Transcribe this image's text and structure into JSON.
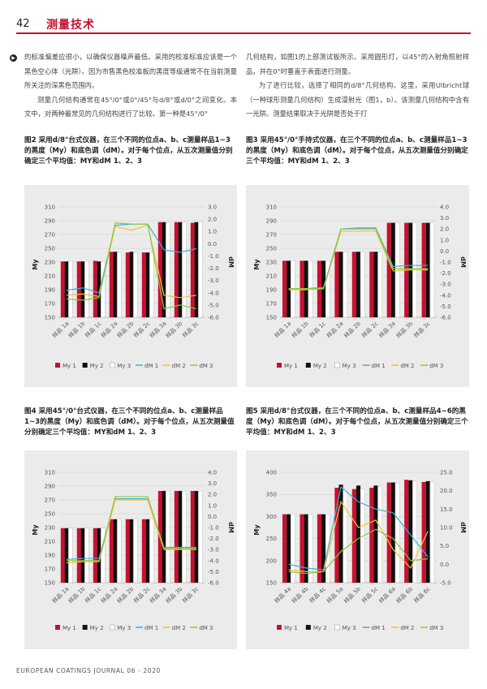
{
  "header": {
    "page_number": "42",
    "section": "测量技术"
  },
  "body_text": {
    "col1": [
      "的标准偏差应很小，以确保仪器噪声最低。采用的校准标准应该是一个黑色空心体（光阱）。因为市售黑色校准板的黑度等级通常不在当前测量所关注的深黑色范围内。",
      "测量几何结构通常在45°/0°或0°/45°与d/8°或d/0°之间变化。本文中，对两种最常见的几何结构进行了比较。第一种是45°/0°"
    ],
    "col2": [
      "几何结构，如图1的上部测试板所示。采用圆形灯，以45°的入射角照射样品，并在0°时垂直于表面进行测量。",
      "为了进行比较，选择了相同的d/8°几何结构。这里，采用Ulbricht球（一种球形测量几何结构）生成漫射光（图1，b）。该测量几何结构中含有一光阱。测量结果取决于光阱是否处于打"
    ]
  },
  "figures": [
    {
      "caption": "图2 采用d/8°台式仪器，在三个不同的位点a、b、c测量样品1~3的黑度（My）和底色调（dM）。对于每个位点，从五次测量值分别确定三个平均值：MY和dM 1、2、3",
      "chart_data": {
        "type": "bar",
        "title": "",
        "categories": [
          "样品 1a",
          "样品 1b",
          "样品 1c",
          "样品 2a",
          "样品 2b",
          "样品 2c",
          "样品 3a",
          "样品 3b",
          "样品 3c"
        ],
        "y_left": {
          "label": "My",
          "ylim": [
            150,
            310
          ],
          "ticks": [
            150,
            170,
            190,
            210,
            230,
            250,
            270,
            290,
            310
          ]
        },
        "y_right": {
          "label": "dM",
          "ylim": [
            -6,
            3
          ],
          "ticks": [
            "-6.0",
            "-5.0",
            "-4.0",
            "-3.0",
            "-2.0",
            "-1.0",
            "0.0",
            "1.0",
            "2.0",
            "3.0"
          ]
        },
        "grid": true,
        "legend_position": "bottom",
        "bar_series": [
          {
            "name": "My 1",
            "values": [
              231,
              231,
              232,
              245,
              244,
              244,
              288,
              288,
              287
            ]
          },
          {
            "name": "My 2",
            "values": [
              231,
              231,
              231,
              245,
              245,
              244,
              288,
              288,
              288
            ]
          },
          {
            "name": "My 3",
            "values": [
              231,
              231,
              231,
              244,
              244,
              244,
              287,
              288,
              288
            ]
          }
        ],
        "line_series": [
          {
            "name": "dM 1",
            "values": [
              -3.8,
              -3.6,
              -4.0,
              1.5,
              1.6,
              1.6,
              -0.5,
              -0.7,
              -0.4
            ]
          },
          {
            "name": "dM 2",
            "values": [
              -4.2,
              -4.1,
              -4.3,
              1.4,
              1.1,
              1.5,
              -4.2,
              -4.4,
              -4.2
            ]
          },
          {
            "name": "dM 3",
            "values": [
              -4.5,
              -4.6,
              -4.4,
              1.7,
              1.6,
              1.6,
              -5.3,
              -5.0,
              -5.3
            ]
          }
        ]
      }
    },
    {
      "caption": "图3 采用45°/0°手持式仪器，在三个不同的位点a、b、c测量样品1~3的黑度（My）和底色调（dM）。对于每个位点，从五次测量值分别确定三个平均值：MY和dM 1、2、3",
      "chart_data": {
        "type": "bar",
        "title": "",
        "categories": [
          "样品 1a",
          "样品 1b",
          "样品 1c",
          "样品 2a",
          "样品 2b",
          "样品 2c",
          "样品 3a",
          "样品 3b",
          "样品 3c"
        ],
        "y_left": {
          "label": "My",
          "ylim": [
            150,
            310
          ],
          "ticks": [
            150,
            170,
            190,
            210,
            230,
            250,
            270,
            290,
            310
          ]
        },
        "y_right": {
          "label": "dM",
          "ylim": [
            -6,
            4
          ],
          "ticks": [
            "-6.0",
            "-5.0",
            "-4.0",
            "-3.0",
            "-2.0",
            "-1.0",
            "0.0",
            "1.0",
            "2.0",
            "3.0",
            "4.0"
          ]
        },
        "grid": true,
        "legend_position": "bottom",
        "bar_series": [
          {
            "name": "My 1",
            "values": [
              232,
              232,
              232,
              245,
              245,
              245,
              287,
              287,
              287
            ]
          },
          {
            "name": "My 2",
            "values": [
              232,
              232,
              232,
              245,
              245,
              245,
              287,
              287,
              287
            ]
          },
          {
            "name": "My 3",
            "values": [
              232,
              232,
              232,
              245,
              245,
              245,
              287,
              287,
              287
            ]
          }
        ],
        "line_series": [
          {
            "name": "dM 1",
            "values": [
              -3.4,
              -3.4,
              -3.3,
              2.0,
              2.1,
              2.1,
              -1.4,
              -1.3,
              -1.3
            ]
          },
          {
            "name": "dM 2",
            "values": [
              -3.5,
              -3.5,
              -3.4,
              1.8,
              1.8,
              1.8,
              -1.8,
              -1.7,
              -1.7
            ]
          },
          {
            "name": "dM 3",
            "values": [
              -3.4,
              -3.4,
              -3.4,
              2.0,
              2.0,
              2.0,
              -1.6,
              -1.6,
              -1.6
            ]
          }
        ]
      }
    },
    {
      "caption": "图4 采用45°/0°台式仪器，在三个不同的位点a、b、c测量样品1~3的黑度（My）和底色调（dM）。对于每个位点，从五次测量值分别确定三个平均值：MY和dM 1、2、3",
      "chart_data": {
        "type": "bar",
        "title": "",
        "categories": [
          "样品 1a",
          "样品 1b",
          "样品 1c",
          "样品 2a",
          "样品 2b",
          "样品 2c",
          "样品 3a",
          "样品 3b",
          "样品 3c"
        ],
        "y_left": {
          "label": "My",
          "ylim": [
            150,
            310
          ],
          "ticks": [
            150,
            170,
            190,
            210,
            230,
            250,
            270,
            290,
            310
          ]
        },
        "y_right": {
          "label": "dM",
          "ylim": [
            -6,
            4
          ],
          "ticks": [
            "-6.0",
            "-5.0",
            "-4.0",
            "-3.0",
            "-2.0",
            "-1.0",
            "0.0",
            "1.0",
            "2.0",
            "3.0",
            "4.0"
          ]
        },
        "grid": true,
        "legend_position": "bottom",
        "bar_series": [
          {
            "name": "My 1",
            "values": [
              229,
              229,
              229,
              242,
              242,
              242,
              283,
              283,
              283
            ]
          },
          {
            "name": "My 2",
            "values": [
              229,
              229,
              229,
              242,
              242,
              242,
              283,
              283,
              283
            ]
          },
          {
            "name": "My 3",
            "values": [
              229,
              229,
              229,
              242,
              242,
              242,
              283,
              283,
              283
            ]
          }
        ],
        "line_series": [
          {
            "name": "dM 1",
            "values": [
              -3.9,
              -3.8,
              -3.8,
              1.6,
              1.6,
              1.6,
              -2.8,
              -2.8,
              -2.8
            ]
          },
          {
            "name": "dM 2",
            "values": [
              -4.2,
              -4.1,
              -4.1,
              1.5,
              1.5,
              1.5,
              -3.0,
              -3.0,
              -3.0
            ]
          },
          {
            "name": "dM 3",
            "values": [
              -4.0,
              -4.0,
              -4.0,
              1.8,
              1.8,
              1.8,
              -2.9,
              -2.9,
              -2.9
            ]
          }
        ]
      }
    },
    {
      "caption": "图5 采用d/8°台式仪器，在三个不同的位点a、b、c测量样品4~6的黑度（My）和底色调（dM）。对于每个位点，从五次测量值分别确定三个平均值：MY和dM 1、2、3",
      "chart_data": {
        "type": "bar",
        "title": "",
        "categories": [
          "样品 4a",
          "样品 4b",
          "样品 4c",
          "样品 5a",
          "样品 5b",
          "样品 5c",
          "样品 6a",
          "样品 6b",
          "样品 6c"
        ],
        "y_left": {
          "label": "My",
          "ylim": [
            150,
            400
          ],
          "ticks": [
            150,
            200,
            250,
            300,
            350,
            400
          ]
        },
        "y_right": {
          "label": "dM",
          "ylim": [
            -5,
            25
          ],
          "ticks": [
            "-5.0",
            "0.0",
            "5.0",
            "10.0",
            "15.0",
            "20.0",
            "25.0"
          ]
        },
        "grid": true,
        "legend_position": "bottom",
        "bar_series": [
          {
            "name": "My 1",
            "values": [
              305,
              305,
              305,
              365,
              362,
              365,
              377,
              383,
              378
            ]
          },
          {
            "name": "My 2",
            "values": [
              305,
              305,
              305,
              372,
              370,
              370,
              377,
              382,
              380
            ]
          },
          {
            "name": "My 3",
            "values": [
              305,
              305,
              305,
              362,
              362,
              367,
              375,
              380,
              378
            ]
          }
        ],
        "line_series": [
          {
            "name": "dM 1",
            "values": [
              0.0,
              -1.0,
              -1.5,
              21.0,
              17.0,
              15.0,
              14.0,
              8.0,
              2.0
            ]
          },
          {
            "name": "dM 2",
            "values": [
              -1.5,
              -2.0,
              -2.0,
              17.0,
              10.0,
              12.0,
              4.0,
              -1.0,
              9.0
            ]
          },
          {
            "name": "dM 3",
            "values": [
              -2.0,
              -2.5,
              -2.0,
              3.5,
              7.0,
              9.5,
              7.0,
              1.0,
              1.5
            ]
          }
        ]
      }
    }
  ],
  "legend_labels": [
    "My 1",
    "My 2",
    "My 3",
    "dM 1",
    "dM 2",
    "dM 3"
  ],
  "colors": {
    "accent": "#c8102e",
    "panel_bg": "#ebebeb",
    "bar1": "#c8102e",
    "bar2": "#111111",
    "bar3": "#ffffff",
    "dm1": "#3aaed8",
    "dm2": "#f2c230",
    "dm3": "#8cc63f"
  },
  "footer": "EUROPEAN COATINGS JOURNAL 06 - 2020"
}
